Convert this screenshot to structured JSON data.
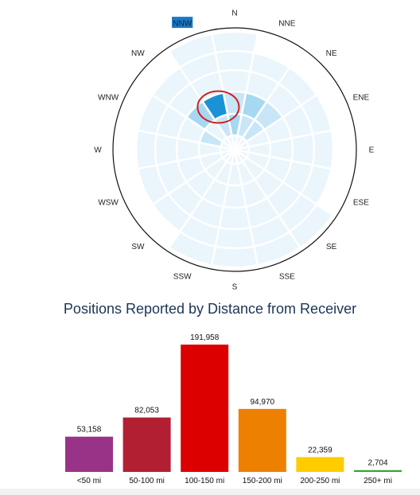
{
  "radar": {
    "selected_direction": "NNW",
    "selected_bg": "#1779c9",
    "highlight_circle_color": "#cc2222",
    "highlight": {
      "direction": "NNW",
      "ring": 2
    },
    "directions": [
      "N",
      "NNE",
      "NE",
      "ENE",
      "E",
      "ESE",
      "SE",
      "SSE",
      "S",
      "SSW",
      "SW",
      "WSW",
      "W",
      "WNW",
      "NW",
      "NNW"
    ],
    "ring_bands_mi": [
      "<50",
      "50-100",
      "100-150",
      "150-200",
      "200-250",
      "250+"
    ],
    "intensity": {
      "N": [
        1,
        3,
        2,
        1,
        1,
        1
      ],
      "NNE": [
        1,
        2,
        3,
        1,
        1,
        0
      ],
      "NE": [
        1,
        2,
        2,
        1,
        1,
        0
      ],
      "ENE": [
        1,
        1,
        1,
        1,
        1,
        0
      ],
      "E": [
        1,
        1,
        1,
        1,
        1,
        0
      ],
      "ESE": [
        1,
        1,
        1,
        1,
        1,
        0
      ],
      "SE": [
        1,
        1,
        1,
        1,
        1,
        1
      ],
      "SSE": [
        1,
        1,
        1,
        1,
        1,
        1
      ],
      "S": [
        1,
        1,
        1,
        1,
        1,
        1
      ],
      "SSW": [
        1,
        1,
        1,
        1,
        1,
        1
      ],
      "SW": [
        1,
        1,
        1,
        1,
        1,
        0
      ],
      "WSW": [
        1,
        1,
        1,
        1,
        1,
        0
      ],
      "W": [
        1,
        1,
        1,
        1,
        1,
        0
      ],
      "WNW": [
        1,
        2,
        1,
        1,
        1,
        0
      ],
      "NW": [
        1,
        1,
        3,
        1,
        1,
        0
      ],
      "NNW": [
        1,
        2,
        4,
        1,
        1,
        1
      ]
    },
    "palette": [
      "#ffffff",
      "#eaf5fc",
      "#c8e6f7",
      "#a6d8f2",
      "#1a93d6"
    ]
  },
  "section_title": "Positions Reported by Distance from Receiver",
  "chart_data": {
    "type": "bar",
    "title": "Positions Reported by Distance from Receiver",
    "categories": [
      "<50 mi",
      "50-100 mi",
      "100-150 mi",
      "150-200 mi",
      "200-250 mi",
      "250+ mi"
    ],
    "values": [
      53158,
      82053,
      191958,
      94970,
      22359,
      2704
    ],
    "value_labels": [
      "53,158",
      "82,053",
      "191,958",
      "94,970",
      "22,359",
      "2,704"
    ],
    "colors": [
      "#993388",
      "#b31f32",
      "#dd0000",
      "#ee8000",
      "#ffcc00",
      "#33aa33"
    ],
    "xlabel": "",
    "ylabel": "",
    "ylim": [
      0,
      191958
    ],
    "grid": false
  }
}
